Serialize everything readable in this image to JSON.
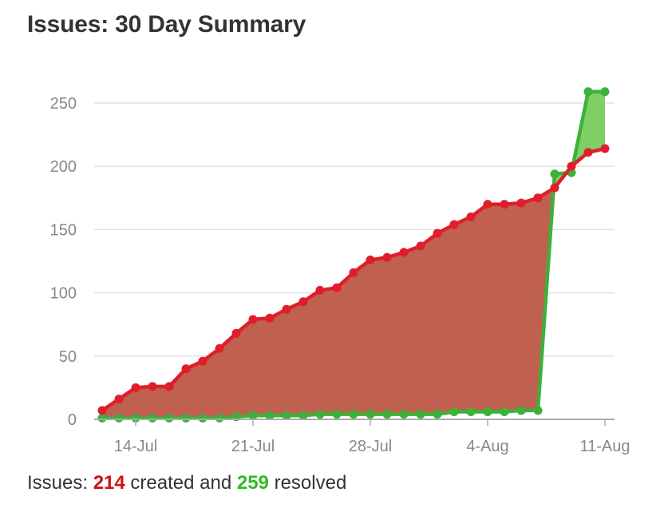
{
  "title": "Issues: 30 Day Summary",
  "summary": {
    "prefix": "Issues: ",
    "created_count": "214",
    "created_label": " created and ",
    "resolved_count": "259",
    "resolved_label": " resolved"
  },
  "colors": {
    "created_line": "#e01e2b",
    "created_fill": "#c0604e",
    "resolved_line": "#3db13a",
    "resolved_fill": "#7fcf66",
    "grid": "#e2e2e2",
    "axis": "#aaaaaa"
  },
  "chart_data": {
    "type": "area",
    "title": "Issues: 30 Day Summary",
    "xlabel": "",
    "ylabel": "",
    "ylim": [
      0,
      250
    ],
    "yticks": [
      0,
      50,
      100,
      150,
      200,
      250
    ],
    "grid": true,
    "xtick_labels": [
      "14-Jul",
      "21-Jul",
      "28-Jul",
      "4-Aug",
      "11-Aug"
    ],
    "xtick_dates": [
      "2014-07-14",
      "2014-07-21",
      "2014-07-28",
      "2014-08-04",
      "2014-08-11"
    ],
    "x": [
      "2014-07-12",
      "2014-07-13",
      "2014-07-14",
      "2014-07-15",
      "2014-07-16",
      "2014-07-17",
      "2014-07-18",
      "2014-07-19",
      "2014-07-20",
      "2014-07-21",
      "2014-07-22",
      "2014-07-23",
      "2014-07-24",
      "2014-07-25",
      "2014-07-26",
      "2014-07-27",
      "2014-07-28",
      "2014-07-29",
      "2014-07-30",
      "2014-07-31",
      "2014-08-01",
      "2014-08-02",
      "2014-08-03",
      "2014-08-04",
      "2014-08-05",
      "2014-08-06",
      "2014-08-07",
      "2014-08-08",
      "2014-08-09",
      "2014-08-10",
      "2014-08-11"
    ],
    "series": [
      {
        "name": "created",
        "values": [
          7,
          16,
          25,
          26,
          26,
          40,
          46,
          56,
          68,
          79,
          80,
          87,
          93,
          102,
          104,
          116,
          126,
          128,
          132,
          137,
          147,
          154,
          160,
          170,
          170,
          171,
          175,
          183,
          200,
          211,
          214
        ]
      },
      {
        "name": "resolved",
        "values": [
          1,
          1,
          1,
          1,
          1,
          1,
          1,
          1,
          2,
          3,
          3,
          3,
          3,
          4,
          4,
          4,
          4,
          4,
          4,
          4,
          4,
          6,
          6,
          6,
          6,
          7,
          7,
          194,
          195,
          259,
          259
        ]
      }
    ]
  }
}
